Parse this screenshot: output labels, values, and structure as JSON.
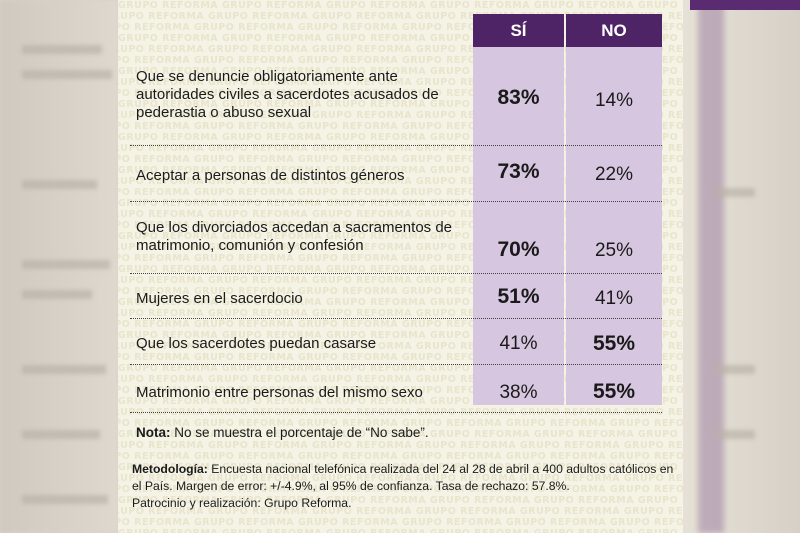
{
  "watermark_text": "GRUPO REFORMA GRUPO REFORMA GRUPO REFORMA GRUPO REFORMA GRUPO REFORMA GRUPO REFORMA",
  "headers": {
    "si": "SÍ",
    "no": "NO"
  },
  "rows": [
    {
      "label": "Que se denuncie obligatoriamente ante autoridades civiles a sacerdotes acusados de pederastia o abuso sexual",
      "si": "83%",
      "no": "14%",
      "bold": "si"
    },
    {
      "label": "Aceptar a personas de distintos géneros",
      "si": "73%",
      "no": "22%",
      "bold": "si"
    },
    {
      "label": "Que los divorciados accedan a sacramentos de matrimonio, comunión y confesión",
      "si": "70%",
      "no": "25%",
      "bold": "si"
    },
    {
      "label": "Mujeres en el sacerdocio",
      "si": "51%",
      "no": "41%",
      "bold": "si"
    },
    {
      "label": "Que los sacerdotes puedan casarse",
      "si": "41%",
      "no": "55%",
      "bold": "no"
    },
    {
      "label": "Matrimonio entre personas del mismo sexo",
      "si": "38%",
      "no": "55%",
      "bold": "no"
    }
  ],
  "note": {
    "label": "Nota:",
    "text": " No se muestra el porcentaje de “No sabe”."
  },
  "methodology": {
    "label": "Metodología:",
    "text": " Encuesta nacional telefónica realizada del 24 al 28 de abril a 400 adultos católicos en el País. Margen de error: +/-4.9%, al 95% de confianza. Tasa de rechazo: 57.8%.",
    "sponsor": "Patrocinio y realización: Grupo Reforma."
  },
  "colors": {
    "header": "#4e2466",
    "column": "#d6c6df",
    "paper": "#f5f3e6"
  }
}
